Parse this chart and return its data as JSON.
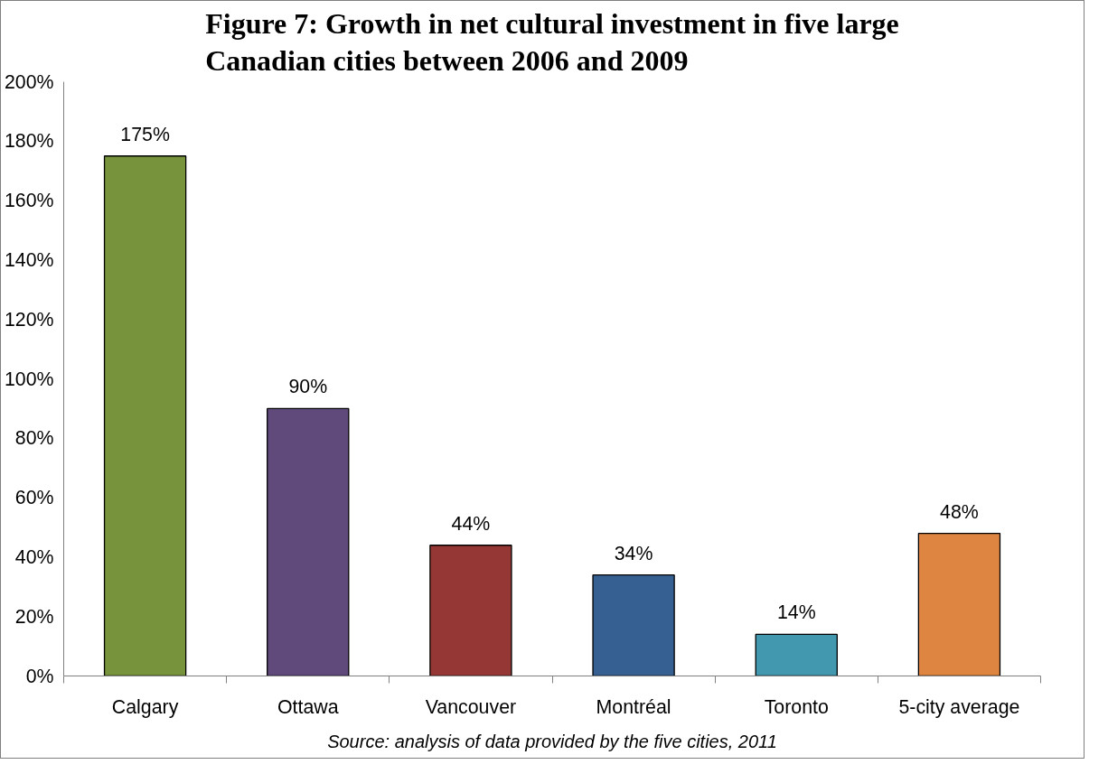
{
  "chart_data": {
    "type": "bar",
    "title": "Figure 7: Growth in net cultural investment in five large Canadian cities between 2006 and 2009",
    "categories": [
      "Calgary",
      "Ottawa",
      "Vancouver",
      "Montréal",
      "Toronto",
      "5-city average"
    ],
    "values": [
      175,
      90,
      44,
      34,
      14,
      48
    ],
    "colors": [
      "#77933c",
      "#604a7b",
      "#953735",
      "#376092",
      "#4198af",
      "#dd8541"
    ],
    "value_labels": [
      "175%",
      "90%",
      "44%",
      "34%",
      "14%",
      "48%"
    ],
    "ylim": [
      0,
      200
    ],
    "yticks": [
      {
        "value": 0,
        "label": "0%"
      },
      {
        "value": 20,
        "label": "20%"
      },
      {
        "value": 40,
        "label": "40%"
      },
      {
        "value": 60,
        "label": "60%"
      },
      {
        "value": 80,
        "label": "80%"
      },
      {
        "value": 100,
        "label": "100%"
      },
      {
        "value": 120,
        "label": "120%"
      },
      {
        "value": 140,
        "label": "140%"
      },
      {
        "value": 160,
        "label": "160%"
      },
      {
        "value": 180,
        "label": "180%"
      },
      {
        "value": 200,
        "label": "200%"
      }
    ],
    "grid": false,
    "annotations": [
      "Source: analysis of data provided by the five cities, 2011"
    ]
  }
}
